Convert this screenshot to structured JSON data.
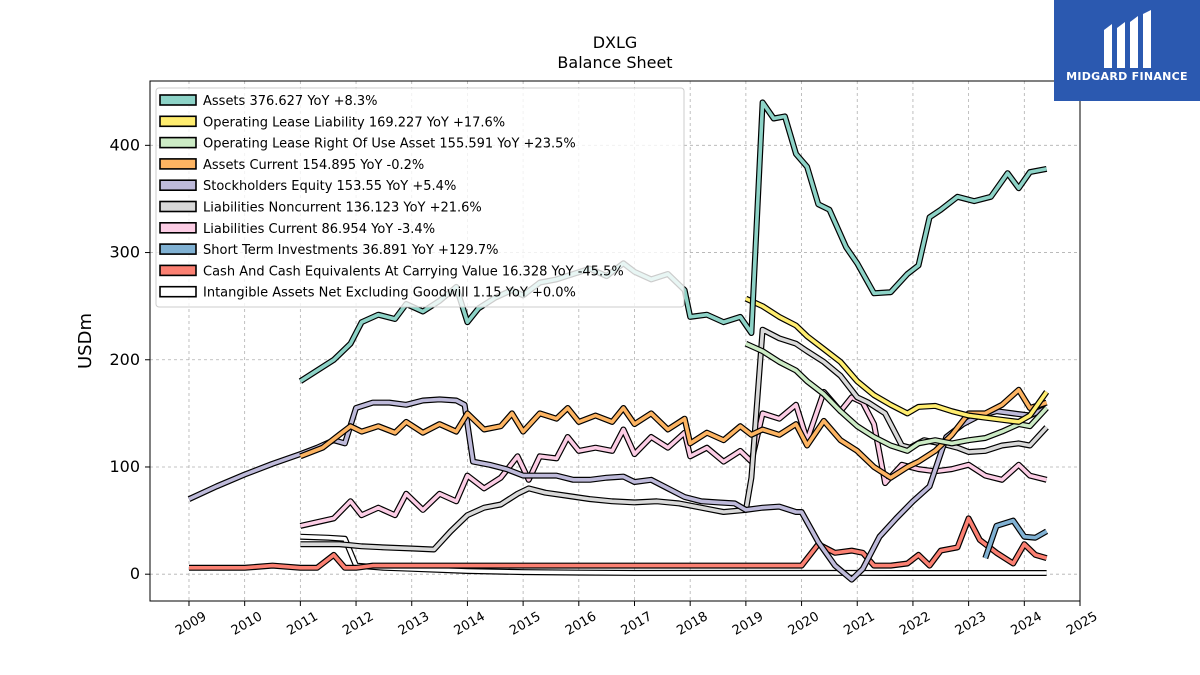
{
  "brand": {
    "name": "MIDGARD FINANCE"
  },
  "chart_data": {
    "type": "line",
    "title": "DXLG",
    "subtitle": "Balance  Sheet",
    "ylabel": "USDm",
    "xlabel": "",
    "xlim": [
      2008.3,
      2025.0
    ],
    "ylim": [
      -25,
      460
    ],
    "yticks": [
      0,
      100,
      200,
      300,
      400
    ],
    "xticks": [
      "2009",
      "2010",
      "2011",
      "2012",
      "2013",
      "2014",
      "2015",
      "2016",
      "2017",
      "2018",
      "2019",
      "2020",
      "2021",
      "2022",
      "2023",
      "2024",
      "2025"
    ],
    "grid": true,
    "legend_position": "top-left",
    "series": [
      {
        "name": "Assets",
        "legend": "Assets  376.627 YoY +8.3%",
        "color": "#8dd3c7",
        "x": [
          2011.0,
          2011.6,
          2011.9,
          2012.1,
          2012.4,
          2012.7,
          2012.9,
          2013.2,
          2013.5,
          2013.8,
          2014.0,
          2014.2,
          2014.5,
          2014.8,
          2015.0,
          2015.3,
          2015.6,
          2015.9,
          2016.2,
          2016.5,
          2016.8,
          2017.0,
          2017.3,
          2017.6,
          2017.9,
          2018.0,
          2018.3,
          2018.6,
          2018.9,
          2019.1,
          2019.3,
          2019.5,
          2019.7,
          2019.9,
          2020.1,
          2020.3,
          2020.5,
          2020.8,
          2021.0,
          2021.3,
          2021.6,
          2021.9,
          2022.1,
          2022.3,
          2022.5,
          2022.8,
          2023.1,
          2023.4,
          2023.7,
          2023.9,
          2024.1,
          2024.4
        ],
        "values": [
          180,
          200,
          215,
          235,
          242,
          238,
          252,
          245,
          255,
          268,
          235,
          248,
          258,
          265,
          260,
          272,
          275,
          280,
          285,
          278,
          290,
          282,
          275,
          280,
          265,
          240,
          242,
          235,
          240,
          225,
          440,
          425,
          427,
          392,
          380,
          345,
          340,
          305,
          290,
          262,
          263,
          280,
          288,
          333,
          340,
          352,
          348,
          352,
          374,
          360,
          375,
          378
        ]
      },
      {
        "name": "Operating Lease Liability",
        "legend": "Operating Lease Liability  169.227 YoY +17.6%",
        "color": "#ffed6f",
        "x": [
          2019.0,
          2019.3,
          2019.6,
          2019.9,
          2020.1,
          2020.4,
          2020.7,
          2021.0,
          2021.3,
          2021.6,
          2021.9,
          2022.1,
          2022.4,
          2022.7,
          2023.0,
          2023.3,
          2023.6,
          2023.9,
          2024.1,
          2024.4
        ],
        "values": [
          257,
          250,
          240,
          232,
          222,
          210,
          198,
          180,
          167,
          158,
          150,
          156,
          157,
          152,
          148,
          146,
          144,
          142,
          148,
          170
        ]
      },
      {
        "name": "Operating Lease Right Of Use Asset",
        "legend": "Operating Lease Right Of Use Asset  155.591 YoY +23.5%",
        "color": "#ccebc5",
        "x": [
          2019.0,
          2019.3,
          2019.6,
          2019.9,
          2020.1,
          2020.4,
          2020.7,
          2021.0,
          2021.3,
          2021.6,
          2021.9,
          2022.1,
          2022.4,
          2022.7,
          2023.0,
          2023.3,
          2023.6,
          2023.9,
          2024.1,
          2024.4
        ],
        "values": [
          215,
          208,
          198,
          190,
          180,
          168,
          152,
          138,
          128,
          120,
          115,
          122,
          125,
          122,
          125,
          127,
          133,
          140,
          138,
          155
        ]
      },
      {
        "name": "Assets Current",
        "legend": "Assets Current  154.895 YoY -0.2%",
        "color": "#fdb462",
        "x": [
          2011.0,
          2011.4,
          2011.7,
          2011.9,
          2012.1,
          2012.4,
          2012.7,
          2012.9,
          2013.2,
          2013.5,
          2013.8,
          2014.0,
          2014.3,
          2014.6,
          2014.8,
          2015.0,
          2015.3,
          2015.6,
          2015.8,
          2016.0,
          2016.3,
          2016.6,
          2016.8,
          2017.0,
          2017.3,
          2017.6,
          2017.9,
          2018.0,
          2018.3,
          2018.6,
          2018.9,
          2019.1,
          2019.3,
          2019.6,
          2019.9,
          2020.1,
          2020.4,
          2020.7,
          2021.0,
          2021.3,
          2021.6,
          2021.9,
          2022.1,
          2022.4,
          2022.7,
          2023.0,
          2023.3,
          2023.6,
          2023.9,
          2024.1,
          2024.4
        ],
        "values": [
          110,
          118,
          130,
          138,
          133,
          138,
          132,
          142,
          132,
          140,
          133,
          150,
          135,
          138,
          150,
          133,
          150,
          145,
          155,
          142,
          148,
          142,
          155,
          140,
          150,
          135,
          145,
          122,
          132,
          125,
          138,
          130,
          135,
          130,
          140,
          120,
          143,
          125,
          115,
          100,
          90,
          100,
          105,
          115,
          130,
          150,
          150,
          158,
          172,
          155,
          160
        ]
      },
      {
        "name": "Stockholders Equity",
        "legend": "Stockholders Equity  153.55 YoY +5.4%",
        "color": "#bebada",
        "x": [
          2009.0,
          2009.5,
          2010.0,
          2010.5,
          2011.0,
          2011.3,
          2011.6,
          2011.8,
          2012.0,
          2012.3,
          2012.6,
          2012.9,
          2013.2,
          2013.5,
          2013.8,
          2013.95,
          2014.1,
          2014.4,
          2014.7,
          2015.0,
          2015.3,
          2015.6,
          2015.9,
          2016.2,
          2016.5,
          2016.8,
          2017.0,
          2017.3,
          2017.6,
          2017.9,
          2018.2,
          2018.5,
          2018.8,
          2019.0,
          2019.3,
          2019.6,
          2019.9,
          2020.0,
          2020.3,
          2020.6,
          2020.9,
          2021.1,
          2021.4,
          2021.7,
          2022.0,
          2022.3,
          2022.6,
          2022.9,
          2023.2,
          2023.5,
          2023.8,
          2024.1,
          2024.4
        ],
        "values": [
          70,
          82,
          93,
          103,
          112,
          118,
          125,
          122,
          155,
          160,
          160,
          158,
          162,
          163,
          162,
          158,
          105,
          102,
          98,
          92,
          92,
          92,
          88,
          88,
          90,
          91,
          86,
          88,
          80,
          72,
          68,
          67,
          66,
          60,
          62,
          63,
          58,
          58,
          30,
          8,
          -5,
          5,
          35,
          52,
          68,
          82,
          128,
          140,
          148,
          152,
          150,
          148,
          155
        ]
      },
      {
        "name": "Liabilities Noncurrent",
        "legend": "Liabilities Noncurrent  136.123 YoY +21.6%",
        "color": "#d9d9d9",
        "x": [
          2011.0,
          2011.4,
          2011.7,
          2011.9,
          2012.1,
          2012.5,
          2013.0,
          2013.4,
          2013.7,
          2014.0,
          2014.3,
          2014.6,
          2014.9,
          2015.1,
          2015.4,
          2015.8,
          2016.2,
          2016.6,
          2017.0,
          2017.4,
          2017.8,
          2018.2,
          2018.6,
          2019.0,
          2019.1,
          2019.3,
          2019.6,
          2019.9,
          2020.1,
          2020.4,
          2020.7,
          2021.0,
          2021.2,
          2021.5,
          2021.8,
          2021.95,
          2022.2,
          2022.5,
          2022.8,
          2023.0,
          2023.3,
          2023.6,
          2023.9,
          2024.1,
          2024.4
        ],
        "values": [
          28,
          28,
          28,
          27,
          26,
          25,
          24,
          23,
          40,
          55,
          62,
          65,
          75,
          80,
          76,
          73,
          70,
          68,
          67,
          68,
          66,
          62,
          58,
          60,
          90,
          228,
          220,
          215,
          208,
          198,
          185,
          165,
          160,
          150,
          120,
          118,
          125,
          122,
          118,
          114,
          115,
          120,
          122,
          120,
          137
        ]
      },
      {
        "name": "Liabilities Current",
        "legend": "Liabilities Current  86.954 YoY -3.4%",
        "color": "#fccde5",
        "x": [
          2011.0,
          2011.6,
          2011.9,
          2012.1,
          2012.4,
          2012.7,
          2012.9,
          2013.2,
          2013.5,
          2013.8,
          2014.0,
          2014.3,
          2014.6,
          2014.9,
          2015.1,
          2015.3,
          2015.6,
          2015.8,
          2016.0,
          2016.3,
          2016.6,
          2016.8,
          2017.0,
          2017.3,
          2017.6,
          2017.9,
          2018.0,
          2018.3,
          2018.6,
          2018.9,
          2019.1,
          2019.3,
          2019.6,
          2019.9,
          2020.1,
          2020.4,
          2020.7,
          2020.9,
          2021.1,
          2021.3,
          2021.5,
          2021.8,
          2022.1,
          2022.4,
          2022.7,
          2023.0,
          2023.3,
          2023.6,
          2023.9,
          2024.1,
          2024.4
        ],
        "values": [
          45,
          52,
          68,
          55,
          62,
          55,
          75,
          60,
          75,
          68,
          92,
          80,
          90,
          110,
          88,
          110,
          108,
          128,
          115,
          118,
          115,
          135,
          112,
          128,
          118,
          132,
          110,
          118,
          105,
          115,
          105,
          150,
          145,
          158,
          125,
          170,
          152,
          165,
          160,
          140,
          85,
          102,
          98,
          96,
          98,
          102,
          92,
          88,
          102,
          92,
          88
        ]
      },
      {
        "name": "Short Term Investments",
        "legend": "Short Term Investments  36.891 YoY +129.7%",
        "color": "#80b1d3",
        "x": [
          2023.3,
          2023.5,
          2023.8,
          2024.0,
          2024.2,
          2024.4
        ],
        "values": [
          15,
          45,
          50,
          35,
          34,
          40
        ]
      },
      {
        "name": "Cash And Cash Equivalents At Carrying Value",
        "legend": "Cash And Cash Equivalents At Carrying Value  16.328 YoY -45.5%",
        "color": "#fb8072",
        "x": [
          2009.0,
          2009.5,
          2010.0,
          2010.5,
          2011.0,
          2011.3,
          2011.6,
          2011.8,
          2012.0,
          2012.3,
          2012.6,
          2013.0,
          2013.5,
          2014.0,
          2014.5,
          2015.0,
          2015.5,
          2016.0,
          2016.5,
          2017.0,
          2017.5,
          2018.0,
          2018.5,
          2019.0,
          2019.5,
          2020.0,
          2020.3,
          2020.6,
          2020.9,
          2021.1,
          2021.3,
          2021.6,
          2021.9,
          2022.1,
          2022.3,
          2022.5,
          2022.8,
          2023.0,
          2023.2,
          2023.5,
          2023.8,
          2024.0,
          2024.2,
          2024.4
        ],
        "values": [
          6,
          6,
          6,
          8,
          6,
          6,
          18,
          6,
          6,
          8,
          8,
          8,
          8,
          8,
          8,
          8,
          8,
          8,
          8,
          8,
          8,
          8,
          8,
          8,
          8,
          8,
          28,
          20,
          22,
          20,
          8,
          8,
          10,
          18,
          8,
          22,
          25,
          52,
          32,
          20,
          10,
          28,
          18,
          15
        ]
      },
      {
        "name": "Intangible Assets Net Excluding Goodwill",
        "legend": "Intangible Assets Net Excluding Goodwill  1.15 YoY +0.0%",
        "color": "#ffffff",
        "x": [
          2011.0,
          2011.5,
          2011.8,
          2012.0,
          2012.5,
          2013.0,
          2014.0,
          2015.0,
          2016.0,
          2017.0,
          2018.0,
          2019.0,
          2020.0,
          2021.0,
          2022.0,
          2023.0,
          2024.0,
          2024.4
        ],
        "values": [
          35,
          34,
          33,
          8,
          6,
          5,
          3,
          2,
          1.5,
          1.2,
          1.2,
          1.2,
          1.2,
          1.2,
          1.15,
          1.15,
          1.15,
          1.15
        ]
      }
    ]
  }
}
